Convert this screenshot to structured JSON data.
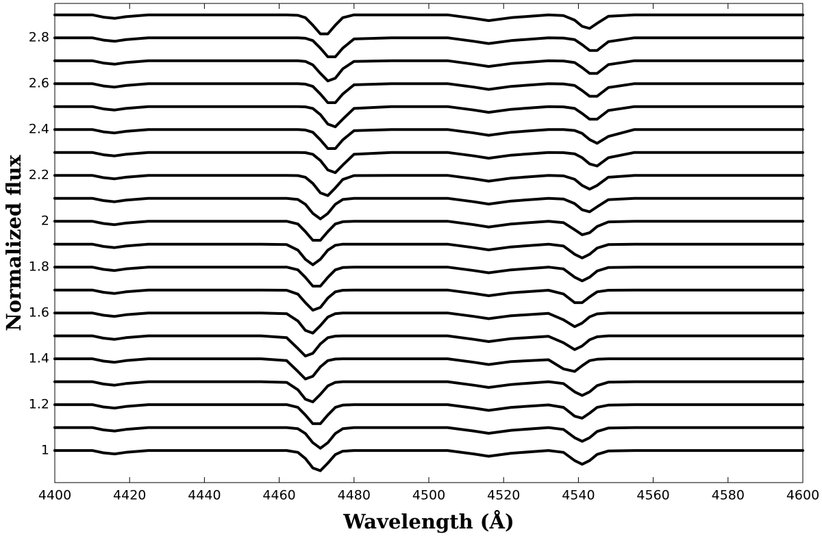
{
  "chart_data": {
    "type": "line",
    "x_label": "Wavelength (Å)",
    "y_label": "Normalized flux",
    "color": "#000000",
    "xlim": [
      4400,
      4600
    ],
    "xticks": [
      4400,
      4420,
      4440,
      4460,
      4480,
      4500,
      4520,
      4540,
      4560,
      4580,
      4600
    ],
    "ylim": [
      0.86,
      2.95
    ],
    "yticks": [
      1,
      1.2,
      1.4,
      1.6,
      1.8,
      2,
      2.2,
      2.4,
      2.6,
      2.8
    ],
    "x": [
      4400,
      4410,
      4413,
      4416,
      4419,
      4425,
      4440,
      4455,
      4462,
      4465,
      4467,
      4469,
      4471,
      4473,
      4475,
      4477,
      4480,
      4490,
      4505,
      4512,
      4516,
      4522,
      4532,
      4536,
      4539,
      4541,
      4543,
      4545,
      4548,
      4555,
      4575,
      4600
    ],
    "series": [
      {
        "values": [
          1,
          1,
          0.99,
          0.985,
          0.992,
          1,
          1,
          1,
          1,
          0.992,
          0.965,
          0.924,
          0.912,
          0.945,
          0.982,
          0.997,
          1,
          1,
          1,
          0.985,
          0.975,
          0.988,
          1,
          0.992,
          0.956,
          0.94,
          0.956,
          0.983,
          0.998,
          1,
          1,
          1
        ]
      },
      {
        "values": [
          1.1,
          1.1,
          1.09,
          1.085,
          1.092,
          1.1,
          1.1,
          1.1,
          1.1,
          1.095,
          1.074,
          1.034,
          1.01,
          1.034,
          1.074,
          1.095,
          1.1,
          1.1,
          1.1,
          1.085,
          1.075,
          1.088,
          1.1,
          1.092,
          1.056,
          1.04,
          1.056,
          1.083,
          1.098,
          1.1,
          1.1,
          1.1
        ]
      },
      {
        "values": [
          1.2,
          1.2,
          1.19,
          1.185,
          1.192,
          1.2,
          1.2,
          1.2,
          1.2,
          1.188,
          1.155,
          1.117,
          1.117,
          1.155,
          1.188,
          1.198,
          1.2,
          1.2,
          1.2,
          1.185,
          1.175,
          1.188,
          1.199,
          1.188,
          1.15,
          1.141,
          1.163,
          1.188,
          1.198,
          1.2,
          1.2,
          1.2
        ]
      },
      {
        "values": [
          1.3,
          1.3,
          1.29,
          1.285,
          1.292,
          1.3,
          1.3,
          1.3,
          1.297,
          1.265,
          1.224,
          1.212,
          1.245,
          1.282,
          1.297,
          1.3,
          1.3,
          1.3,
          1.3,
          1.285,
          1.275,
          1.288,
          1.3,
          1.292,
          1.256,
          1.24,
          1.256,
          1.283,
          1.298,
          1.3,
          1.3,
          1.3
        ]
      },
      {
        "values": [
          1.4,
          1.4,
          1.39,
          1.385,
          1.392,
          1.4,
          1.4,
          1.4,
          1.392,
          1.345,
          1.312,
          1.324,
          1.365,
          1.392,
          1.399,
          1.4,
          1.4,
          1.4,
          1.4,
          1.385,
          1.375,
          1.388,
          1.396,
          1.356,
          1.345,
          1.37,
          1.392,
          1.398,
          1.4,
          1.4,
          1.4,
          1.4
        ]
      },
      {
        "values": [
          1.5,
          1.5,
          1.49,
          1.485,
          1.492,
          1.5,
          1.5,
          1.5,
          1.492,
          1.445,
          1.412,
          1.424,
          1.465,
          1.492,
          1.499,
          1.5,
          1.5,
          1.5,
          1.5,
          1.485,
          1.475,
          1.488,
          1.498,
          1.47,
          1.44,
          1.456,
          1.483,
          1.496,
          1.5,
          1.5,
          1.5,
          1.5
        ]
      },
      {
        "values": [
          1.6,
          1.6,
          1.59,
          1.585,
          1.592,
          1.6,
          1.6,
          1.6,
          1.597,
          1.565,
          1.524,
          1.512,
          1.545,
          1.582,
          1.597,
          1.6,
          1.6,
          1.6,
          1.6,
          1.585,
          1.575,
          1.588,
          1.598,
          1.57,
          1.54,
          1.556,
          1.583,
          1.596,
          1.6,
          1.6,
          1.6,
          1.6
        ]
      },
      {
        "values": [
          1.7,
          1.7,
          1.69,
          1.685,
          1.692,
          1.7,
          1.7,
          1.7,
          1.699,
          1.682,
          1.645,
          1.612,
          1.624,
          1.665,
          1.692,
          1.699,
          1.7,
          1.7,
          1.7,
          1.685,
          1.675,
          1.688,
          1.699,
          1.683,
          1.645,
          1.645,
          1.67,
          1.692,
          1.699,
          1.7,
          1.7,
          1.7
        ]
      },
      {
        "values": [
          1.8,
          1.8,
          1.79,
          1.785,
          1.792,
          1.8,
          1.8,
          1.8,
          1.8,
          1.788,
          1.755,
          1.717,
          1.717,
          1.755,
          1.788,
          1.798,
          1.8,
          1.8,
          1.8,
          1.785,
          1.775,
          1.788,
          1.8,
          1.792,
          1.756,
          1.74,
          1.756,
          1.783,
          1.798,
          1.8,
          1.8,
          1.8
        ]
      },
      {
        "values": [
          1.9,
          1.9,
          1.89,
          1.885,
          1.892,
          1.9,
          1.9,
          1.9,
          1.898,
          1.874,
          1.834,
          1.81,
          1.834,
          1.874,
          1.895,
          1.9,
          1.9,
          1.9,
          1.9,
          1.885,
          1.875,
          1.888,
          1.9,
          1.892,
          1.856,
          1.84,
          1.856,
          1.883,
          1.898,
          1.9,
          1.9,
          1.9
        ]
      },
      {
        "values": [
          2,
          2,
          1.99,
          1.985,
          1.992,
          2,
          2,
          2,
          2,
          1.988,
          1.955,
          1.917,
          1.917,
          1.955,
          1.988,
          1.998,
          2,
          2,
          2,
          1.985,
          1.975,
          1.988,
          2,
          1.994,
          1.963,
          1.941,
          1.95,
          1.977,
          1.997,
          2,
          2,
          2
        ]
      },
      {
        "values": [
          2.1,
          2.1,
          2.09,
          2.085,
          2.092,
          2.1,
          2.1,
          2.1,
          2.1,
          2.095,
          2.074,
          2.034,
          2.01,
          2.034,
          2.074,
          2.095,
          2.1,
          2.1,
          2.1,
          2.085,
          2.075,
          2.088,
          2.1,
          2.097,
          2.077,
          2.05,
          2.041,
          2.063,
          2.094,
          2.1,
          2.1,
          2.1
        ]
      },
      {
        "values": [
          2.2,
          2.2,
          2.19,
          2.185,
          2.192,
          2.2,
          2.2,
          2.2,
          2.2,
          2.199,
          2.192,
          2.165,
          2.124,
          2.112,
          2.145,
          2.182,
          2.199,
          2.2,
          2.2,
          2.185,
          2.175,
          2.188,
          2.2,
          2.198,
          2.183,
          2.156,
          2.14,
          2.156,
          2.192,
          2.2,
          2.2,
          2.2
        ]
      },
      {
        "values": [
          2.3,
          2.3,
          2.29,
          2.285,
          2.292,
          2.3,
          2.3,
          2.3,
          2.3,
          2.3,
          2.299,
          2.292,
          2.265,
          2.224,
          2.212,
          2.245,
          2.292,
          2.3,
          2.3,
          2.285,
          2.275,
          2.288,
          2.3,
          2.299,
          2.294,
          2.277,
          2.25,
          2.241,
          2.277,
          2.3,
          2.3,
          2.3
        ]
      },
      {
        "values": [
          2.4,
          2.4,
          2.39,
          2.385,
          2.392,
          2.4,
          2.4,
          2.4,
          2.4,
          2.4,
          2.398,
          2.388,
          2.355,
          2.317,
          2.317,
          2.355,
          2.395,
          2.4,
          2.4,
          2.385,
          2.375,
          2.388,
          2.4,
          2.4,
          2.396,
          2.383,
          2.356,
          2.34,
          2.37,
          2.4,
          2.4,
          2.4
        ]
      },
      {
        "values": [
          2.5,
          2.5,
          2.49,
          2.485,
          2.492,
          2.5,
          2.5,
          2.5,
          2.5,
          2.5,
          2.499,
          2.492,
          2.465,
          2.424,
          2.412,
          2.445,
          2.492,
          2.5,
          2.5,
          2.485,
          2.475,
          2.488,
          2.5,
          2.499,
          2.492,
          2.47,
          2.445,
          2.445,
          2.483,
          2.5,
          2.5,
          2.5
        ]
      },
      {
        "values": [
          2.6,
          2.6,
          2.59,
          2.585,
          2.592,
          2.6,
          2.6,
          2.6,
          2.6,
          2.6,
          2.598,
          2.588,
          2.555,
          2.517,
          2.517,
          2.555,
          2.595,
          2.6,
          2.6,
          2.585,
          2.575,
          2.588,
          2.6,
          2.599,
          2.592,
          2.57,
          2.545,
          2.545,
          2.583,
          2.6,
          2.6,
          2.6
        ]
      },
      {
        "values": [
          2.7,
          2.7,
          2.69,
          2.685,
          2.692,
          2.7,
          2.7,
          2.7,
          2.7,
          2.7,
          2.697,
          2.682,
          2.645,
          2.612,
          2.624,
          2.665,
          2.697,
          2.7,
          2.7,
          2.685,
          2.675,
          2.688,
          2.7,
          2.699,
          2.692,
          2.67,
          2.645,
          2.645,
          2.683,
          2.7,
          2.7,
          2.7
        ]
      },
      {
        "values": [
          2.8,
          2.8,
          2.79,
          2.785,
          2.792,
          2.8,
          2.8,
          2.8,
          2.8,
          2.8,
          2.798,
          2.788,
          2.755,
          2.717,
          2.717,
          2.755,
          2.795,
          2.8,
          2.8,
          2.785,
          2.775,
          2.788,
          2.8,
          2.799,
          2.792,
          2.77,
          2.745,
          2.745,
          2.783,
          2.8,
          2.8,
          2.8
        ]
      },
      {
        "values": [
          2.9,
          2.9,
          2.89,
          2.885,
          2.892,
          2.9,
          2.9,
          2.9,
          2.9,
          2.898,
          2.888,
          2.855,
          2.817,
          2.817,
          2.855,
          2.888,
          2.9,
          2.9,
          2.9,
          2.885,
          2.875,
          2.888,
          2.9,
          2.897,
          2.877,
          2.85,
          2.841,
          2.863,
          2.894,
          2.9,
          2.9,
          2.9
        ]
      }
    ]
  }
}
